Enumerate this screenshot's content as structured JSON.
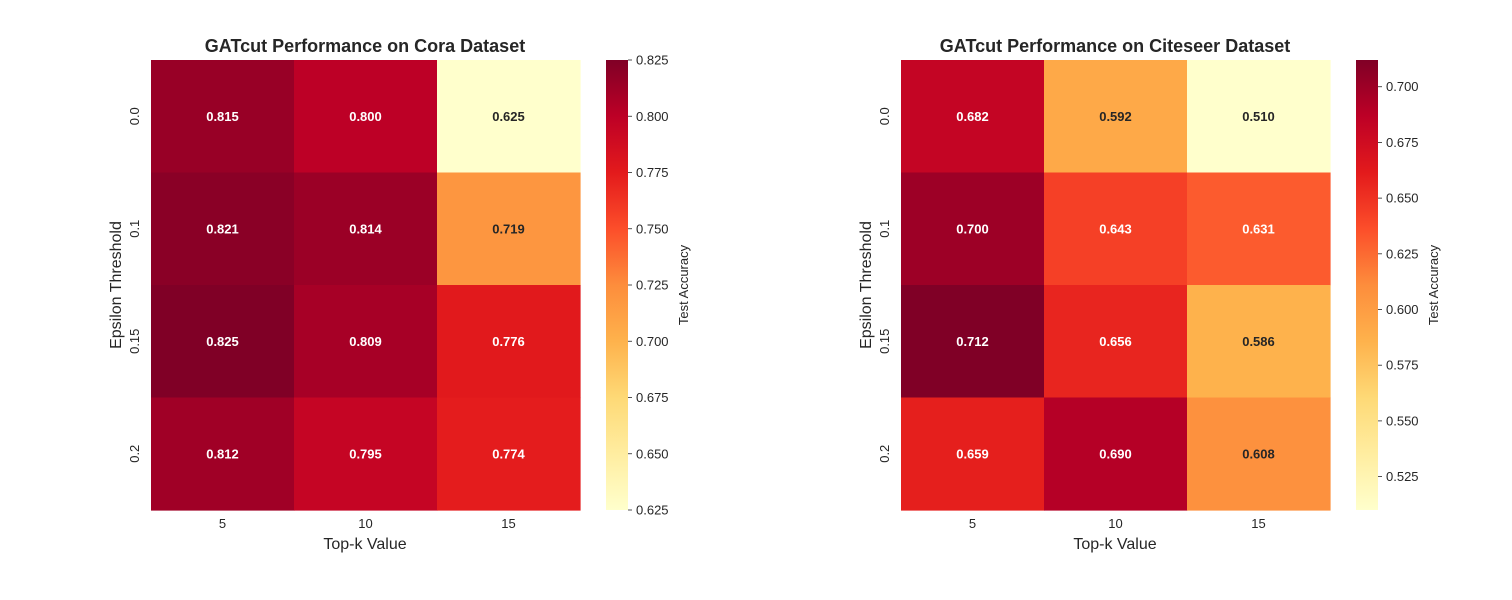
{
  "chart_data": [
    {
      "type": "heatmap",
      "title": "GATcut Performance on Cora Dataset",
      "xlabel": "Top-k Value",
      "ylabel": "Epsilon Threshold",
      "x_categories": [
        "5",
        "10",
        "15"
      ],
      "y_categories": [
        "0.0",
        "0.1",
        "0.15",
        "0.2"
      ],
      "values": [
        [
          0.815,
          0.8,
          0.625
        ],
        [
          0.821,
          0.814,
          0.719
        ],
        [
          0.825,
          0.809,
          0.776
        ],
        [
          0.812,
          0.795,
          0.774
        ]
      ],
      "colorbar": {
        "label": "Test Accuracy",
        "range": [
          0.625,
          0.825
        ],
        "ticks": [
          "0.625",
          "0.650",
          "0.675",
          "0.700",
          "0.725",
          "0.750",
          "0.775",
          "0.800",
          "0.825"
        ],
        "colormap": "YlOrRd"
      },
      "grid": false
    },
    {
      "type": "heatmap",
      "title": "GATcut Performance on Citeseer Dataset",
      "xlabel": "Top-k Value",
      "ylabel": "Epsilon Threshold",
      "x_categories": [
        "5",
        "10",
        "15"
      ],
      "y_categories": [
        "0.0",
        "0.1",
        "0.15",
        "0.2"
      ],
      "values": [
        [
          0.682,
          0.592,
          0.51
        ],
        [
          0.7,
          0.643,
          0.631
        ],
        [
          0.712,
          0.656,
          0.586
        ],
        [
          0.659,
          0.69,
          0.608
        ]
      ],
      "colorbar": {
        "label": "Test Accuracy",
        "range": [
          0.51,
          0.712
        ],
        "ticks": [
          "0.525",
          "0.550",
          "0.575",
          "0.600",
          "0.625",
          "0.650",
          "0.675",
          "0.700"
        ],
        "colormap": "YlOrRd"
      },
      "grid": false
    }
  ]
}
